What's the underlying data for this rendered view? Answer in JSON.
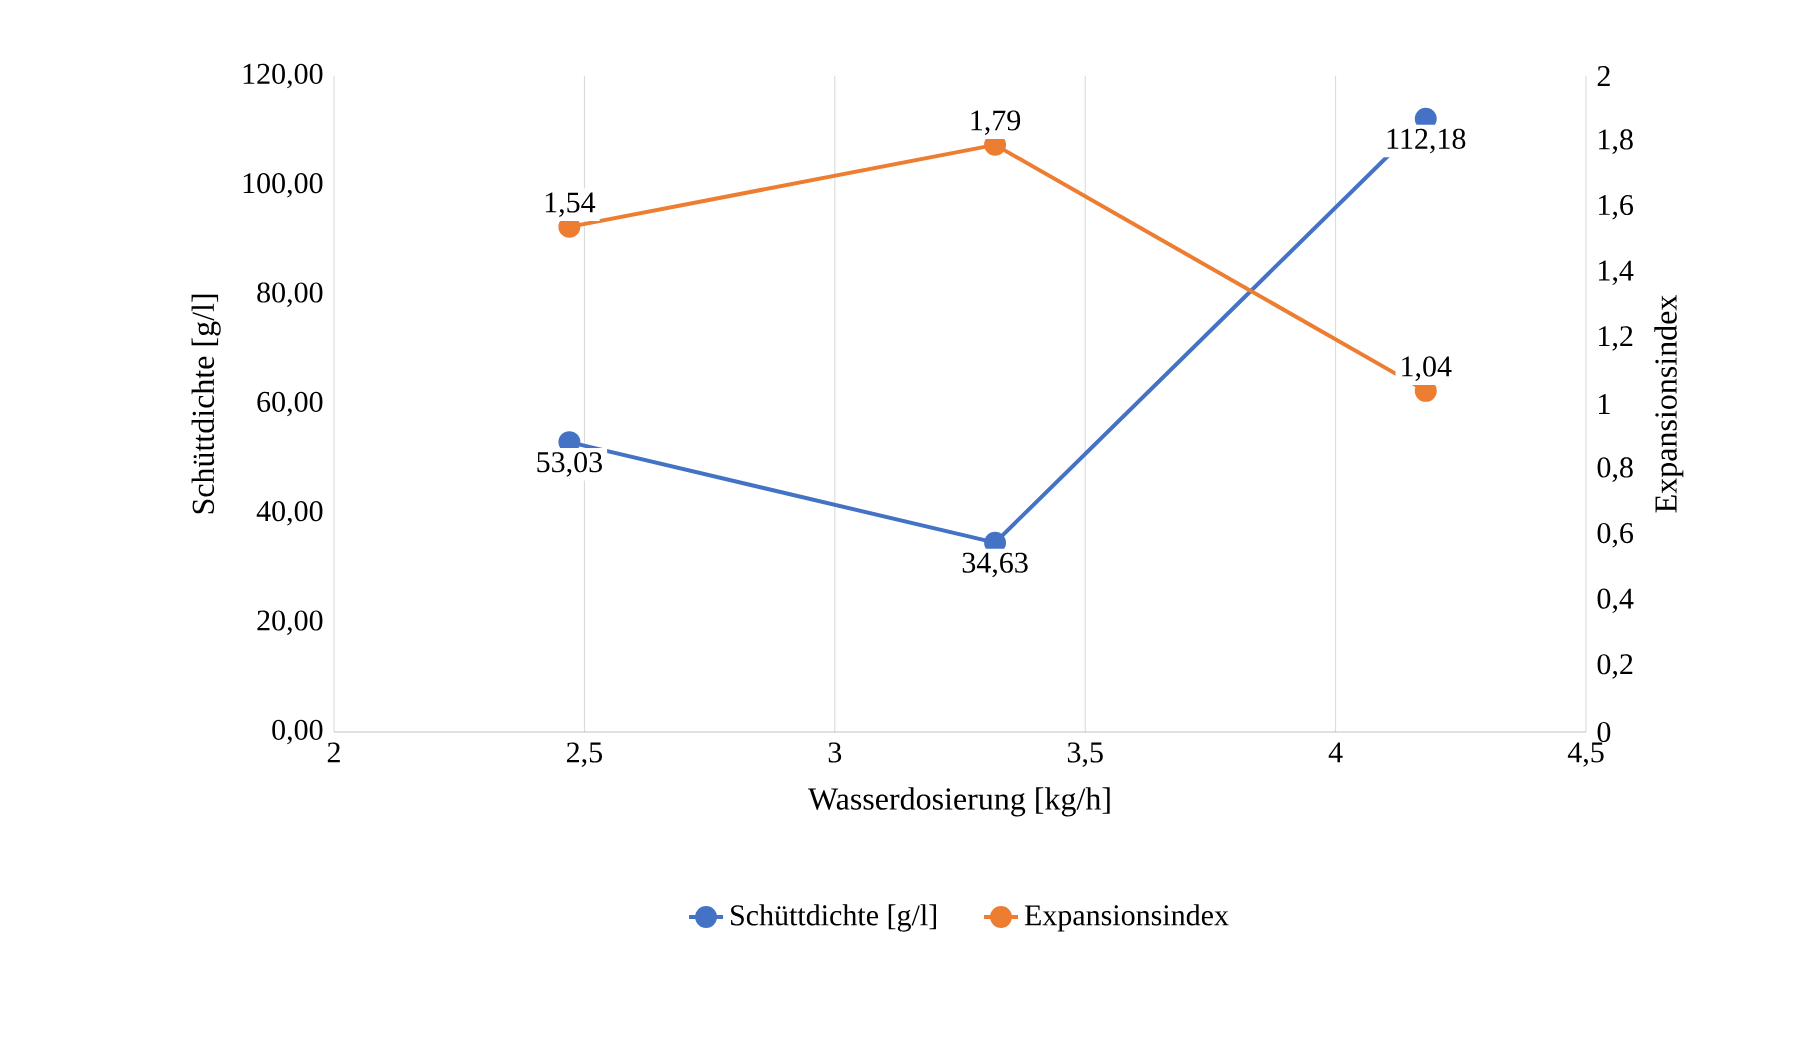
{
  "chart_data": {
    "type": "line",
    "xlabel": "Wasserdosierung [kg/h]",
    "ylabel": "Schüttdichte [g/l]",
    "y2label": "Expansionsindex",
    "x": [
      2.47,
      3.32,
      4.18
    ],
    "series": [
      {
        "name": "Schüttdichte [g/l]",
        "color": "#4472c4",
        "values": [
          53.03,
          34.63,
          112.18
        ],
        "value_labels": [
          "53,03",
          "34,63",
          "112,18"
        ]
      },
      {
        "name": "Expansionsindex",
        "color": "#ed7d31",
        "axis": "y2",
        "values": [
          1.54,
          1.79,
          1.04
        ],
        "value_labels": [
          "1,54",
          "1,79",
          "1,04"
        ]
      }
    ],
    "xlim": [
      2,
      4.5
    ],
    "xticks": [
      2,
      {
        "value": 2.5,
        "label": "2,5"
      },
      3,
      {
        "value": 3.5,
        "label": "3,5"
      },
      4,
      {
        "value": 4.5,
        "label": "4,5"
      }
    ],
    "ylim": [
      0,
      120
    ],
    "yticks": [
      {
        "value": 0,
        "label": "0,00"
      },
      {
        "value": 20,
        "label": "20,00"
      },
      {
        "value": 40,
        "label": "40,00"
      },
      {
        "value": 60,
        "label": "60,00"
      },
      {
        "value": 80,
        "label": "80,00"
      },
      {
        "value": 100,
        "label": "100,00"
      },
      {
        "value": 120,
        "label": "120,00"
      }
    ],
    "y2lim": [
      0,
      2
    ],
    "y2ticks": [
      0,
      {
        "value": 0.2,
        "label": "0,2"
      },
      {
        "value": 0.4,
        "label": "0,4"
      },
      {
        "value": 0.6,
        "label": "0,6"
      },
      {
        "value": 0.8,
        "label": "0,8"
      },
      1,
      {
        "value": 1.2,
        "label": "1,2"
      },
      {
        "value": 1.4,
        "label": "1,4"
      },
      {
        "value": 1.6,
        "label": "1,6"
      },
      {
        "value": 1.8,
        "label": "1,8"
      },
      2
    ],
    "grid": "x",
    "legend": "bottom",
    "marker": "circle",
    "line_style": "solid"
  }
}
